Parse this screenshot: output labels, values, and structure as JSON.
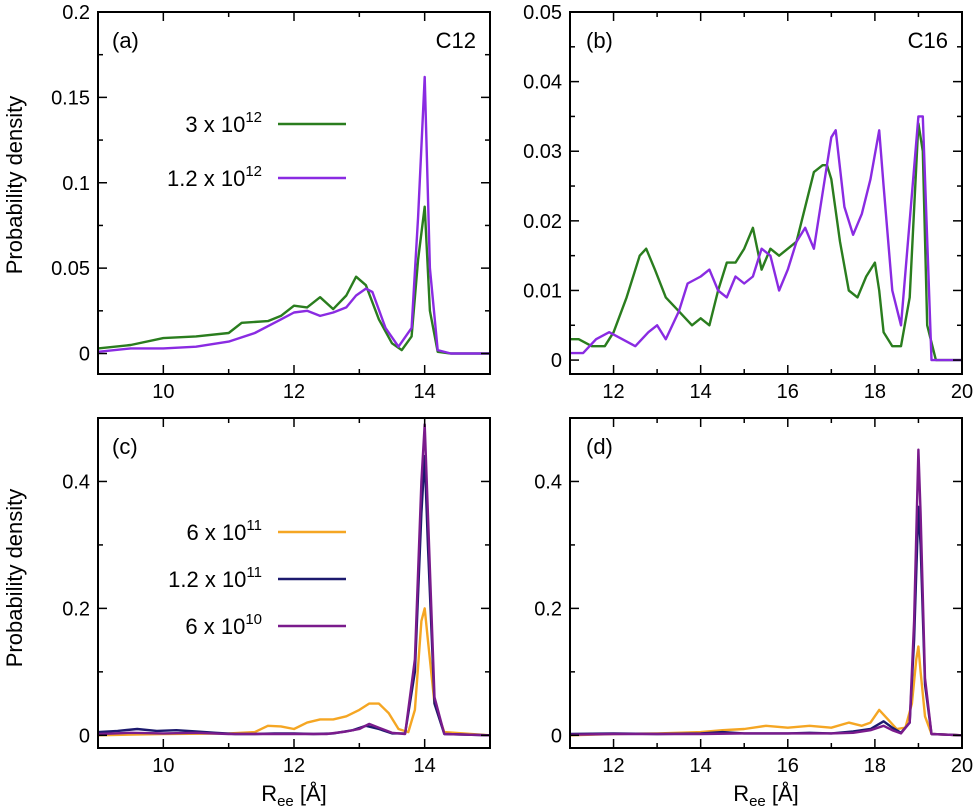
{
  "figure": {
    "ylabel_top": "Probability density",
    "ylabel_bottom": "Probability density",
    "xlabel_main": "R",
    "xlabel_sub": "ee",
    "xlabel_unit": " [Å]"
  },
  "chart_data": [
    {
      "type": "line",
      "panel": "(a)",
      "annotation": "C12",
      "xlim": [
        9,
        15
      ],
      "ylim": [
        -0.012,
        0.2
      ],
      "xticks": [
        10,
        12,
        14
      ],
      "yticks": [
        0,
        0.05,
        0.1,
        0.15,
        0.2
      ],
      "ytick_labels": [
        "0",
        "0.05",
        "0.1",
        "0.15",
        "0.2"
      ],
      "series": [
        {
          "label_base": "3 x 10",
          "label_exp": "12",
          "color": "#2a7d1e",
          "x": [
            9.0,
            9.5,
            10.0,
            10.5,
            11.0,
            11.2,
            11.6,
            11.8,
            12.0,
            12.2,
            12.4,
            12.6,
            12.8,
            12.95,
            13.1,
            13.3,
            13.5,
            13.65,
            13.8,
            13.9,
            14.0,
            14.08,
            14.2,
            14.4,
            15.0
          ],
          "y": [
            0.003,
            0.005,
            0.009,
            0.01,
            0.012,
            0.018,
            0.019,
            0.022,
            0.028,
            0.027,
            0.033,
            0.026,
            0.034,
            0.045,
            0.04,
            0.02,
            0.006,
            0.002,
            0.01,
            0.055,
            0.086,
            0.025,
            0.001,
            0.0,
            0.0
          ]
        },
        {
          "label_base": "1.2 x 10",
          "label_exp": "12",
          "color": "#8a2be2",
          "x": [
            9.0,
            9.5,
            10.0,
            10.5,
            11.0,
            11.4,
            11.6,
            11.8,
            12.0,
            12.2,
            12.4,
            12.6,
            12.8,
            12.95,
            13.1,
            13.2,
            13.4,
            13.6,
            13.8,
            13.9,
            14.0,
            14.08,
            14.2,
            14.4,
            15.0
          ],
          "y": [
            0.001,
            0.003,
            0.003,
            0.004,
            0.007,
            0.012,
            0.016,
            0.02,
            0.024,
            0.025,
            0.022,
            0.024,
            0.027,
            0.034,
            0.038,
            0.036,
            0.015,
            0.004,
            0.015,
            0.08,
            0.162,
            0.05,
            0.002,
            0.0,
            0.0
          ]
        }
      ]
    },
    {
      "type": "line",
      "panel": "(b)",
      "annotation": "C16",
      "xlim": [
        11,
        20
      ],
      "ylim": [
        -0.002,
        0.05
      ],
      "xticks": [
        12,
        14,
        16,
        18,
        20
      ],
      "yticks": [
        0,
        0.01,
        0.02,
        0.03,
        0.04,
        0.05
      ],
      "ytick_labels": [
        "0",
        "0.01",
        "0.02",
        "0.03",
        "0.04",
        "0.05"
      ],
      "series": [
        {
          "label_base": "3 x 10",
          "label_exp": "12",
          "color": "#2a7d1e",
          "x": [
            11.0,
            11.2,
            11.5,
            11.8,
            12.0,
            12.3,
            12.6,
            12.75,
            12.95,
            13.2,
            13.5,
            13.8,
            14.0,
            14.2,
            14.4,
            14.6,
            14.8,
            15.0,
            15.2,
            15.4,
            15.6,
            15.8,
            16.0,
            16.2,
            16.4,
            16.6,
            16.8,
            16.9,
            17.0,
            17.2,
            17.4,
            17.6,
            17.8,
            18.0,
            18.1,
            18.2,
            18.4,
            18.6,
            18.8,
            19.0,
            19.1,
            19.2,
            19.4,
            20.0
          ],
          "y": [
            0.003,
            0.003,
            0.002,
            0.002,
            0.004,
            0.009,
            0.015,
            0.016,
            0.013,
            0.009,
            0.007,
            0.005,
            0.006,
            0.005,
            0.01,
            0.014,
            0.014,
            0.016,
            0.019,
            0.013,
            0.016,
            0.015,
            0.016,
            0.017,
            0.022,
            0.027,
            0.028,
            0.028,
            0.026,
            0.017,
            0.01,
            0.009,
            0.012,
            0.014,
            0.01,
            0.004,
            0.002,
            0.002,
            0.009,
            0.034,
            0.03,
            0.005,
            0.0,
            0.0
          ]
        },
        {
          "label_base": "1.2 x 10",
          "label_exp": "12",
          "color": "#8a2be2",
          "x": [
            11.0,
            11.3,
            11.6,
            11.9,
            12.2,
            12.5,
            12.8,
            13.0,
            13.2,
            13.5,
            13.7,
            14.0,
            14.2,
            14.4,
            14.6,
            14.8,
            15.0,
            15.2,
            15.4,
            15.6,
            15.8,
            16.0,
            16.2,
            16.4,
            16.6,
            16.8,
            17.0,
            17.1,
            17.3,
            17.5,
            17.7,
            17.9,
            18.1,
            18.2,
            18.4,
            18.6,
            18.8,
            19.0,
            19.1,
            19.3,
            20.0
          ],
          "y": [
            0.001,
            0.001,
            0.003,
            0.004,
            0.003,
            0.002,
            0.004,
            0.005,
            0.003,
            0.007,
            0.011,
            0.012,
            0.013,
            0.01,
            0.009,
            0.012,
            0.011,
            0.012,
            0.016,
            0.015,
            0.01,
            0.013,
            0.017,
            0.019,
            0.016,
            0.024,
            0.032,
            0.033,
            0.022,
            0.018,
            0.021,
            0.026,
            0.033,
            0.025,
            0.01,
            0.005,
            0.02,
            0.035,
            0.035,
            0.0,
            0.0
          ]
        }
      ]
    },
    {
      "type": "line",
      "panel": "(c)",
      "annotation": "",
      "xlim": [
        9,
        15
      ],
      "ylim": [
        -0.02,
        0.5
      ],
      "xticks": [
        10,
        12,
        14
      ],
      "yticks": [
        0,
        0.2,
        0.4
      ],
      "ytick_labels": [
        "0",
        "0.2",
        "0.4"
      ],
      "series": [
        {
          "label_base": "6 x 10",
          "label_exp": "11",
          "color": "#f5a623",
          "x": [
            9.0,
            10.0,
            11.0,
            11.4,
            11.6,
            11.8,
            12.0,
            12.2,
            12.4,
            12.6,
            12.8,
            13.0,
            13.15,
            13.3,
            13.45,
            13.6,
            13.75,
            13.85,
            13.95,
            14.0,
            14.05,
            14.15,
            14.3,
            15.0
          ],
          "y": [
            0.0,
            0.002,
            0.003,
            0.005,
            0.015,
            0.014,
            0.01,
            0.02,
            0.025,
            0.025,
            0.03,
            0.04,
            0.05,
            0.05,
            0.035,
            0.01,
            0.005,
            0.04,
            0.18,
            0.2,
            0.15,
            0.05,
            0.005,
            0.0
          ]
        },
        {
          "label_base": "1.2 x 10",
          "label_exp": "11",
          "color": "#1c1a6e",
          "x": [
            9.0,
            9.3,
            9.6,
            9.9,
            10.2,
            10.5,
            10.8,
            11.1,
            11.4,
            11.7,
            12.0,
            12.3,
            12.6,
            12.9,
            13.1,
            13.3,
            13.5,
            13.7,
            13.85,
            13.95,
            14.0,
            14.05,
            14.15,
            14.3,
            15.0
          ],
          "y": [
            0.005,
            0.007,
            0.01,
            0.007,
            0.008,
            0.006,
            0.004,
            0.002,
            0.002,
            0.003,
            0.003,
            0.002,
            0.003,
            0.008,
            0.015,
            0.01,
            0.003,
            0.003,
            0.1,
            0.35,
            0.44,
            0.3,
            0.05,
            0.002,
            0.0
          ]
        },
        {
          "label_base": "6 x 10",
          "label_exp": "10",
          "color": "#7a1b8c",
          "x": [
            9.0,
            9.5,
            10.0,
            10.5,
            11.0,
            11.5,
            12.0,
            12.5,
            12.8,
            13.0,
            13.15,
            13.3,
            13.5,
            13.7,
            13.85,
            13.95,
            14.0,
            14.05,
            14.15,
            14.3,
            15.0
          ],
          "y": [
            0.002,
            0.004,
            0.003,
            0.004,
            0.002,
            0.002,
            0.002,
            0.002,
            0.006,
            0.01,
            0.018,
            0.012,
            0.004,
            0.002,
            0.12,
            0.4,
            0.49,
            0.35,
            0.06,
            0.002,
            0.0
          ]
        }
      ]
    },
    {
      "type": "line",
      "panel": "(d)",
      "annotation": "",
      "xlim": [
        11,
        20
      ],
      "ylim": [
        -0.02,
        0.5
      ],
      "xticks": [
        12,
        14,
        16,
        18,
        20
      ],
      "yticks": [
        0,
        0.2,
        0.4
      ],
      "ytick_labels": [
        "0",
        "0.2",
        "0.4"
      ],
      "series": [
        {
          "label_base": "6 x 10",
          "label_exp": "11",
          "color": "#f5a623",
          "x": [
            11.0,
            12.0,
            13.0,
            14.0,
            14.5,
            15.0,
            15.5,
            16.0,
            16.5,
            17.0,
            17.4,
            17.7,
            17.9,
            18.1,
            18.3,
            18.5,
            18.7,
            18.85,
            18.95,
            19.0,
            19.05,
            19.15,
            19.3,
            20.0
          ],
          "y": [
            0.0,
            0.002,
            0.003,
            0.005,
            0.008,
            0.01,
            0.015,
            0.012,
            0.015,
            0.012,
            0.02,
            0.015,
            0.02,
            0.04,
            0.025,
            0.01,
            0.012,
            0.05,
            0.12,
            0.14,
            0.1,
            0.03,
            0.002,
            0.0
          ]
        },
        {
          "label_base": "1.2 x 10",
          "label_exp": "11",
          "color": "#1c1a6e",
          "x": [
            11.0,
            12.0,
            13.0,
            14.0,
            14.5,
            15.0,
            16.0,
            16.5,
            17.0,
            17.5,
            17.9,
            18.2,
            18.4,
            18.6,
            18.8,
            18.9,
            19.0,
            19.05,
            19.15,
            19.3,
            20.0
          ],
          "y": [
            0.002,
            0.003,
            0.002,
            0.003,
            0.005,
            0.003,
            0.003,
            0.004,
            0.003,
            0.006,
            0.01,
            0.022,
            0.012,
            0.004,
            0.02,
            0.15,
            0.36,
            0.3,
            0.08,
            0.002,
            0.0
          ]
        },
        {
          "label_base": "6 x 10",
          "label_exp": "10",
          "color": "#7a1b8c",
          "x": [
            11.0,
            12.0,
            13.0,
            14.0,
            15.0,
            16.0,
            17.0,
            17.5,
            17.9,
            18.2,
            18.4,
            18.6,
            18.8,
            18.9,
            19.0,
            19.05,
            19.15,
            19.3,
            20.0
          ],
          "y": [
            0.001,
            0.002,
            0.002,
            0.002,
            0.003,
            0.003,
            0.003,
            0.004,
            0.008,
            0.015,
            0.008,
            0.003,
            0.02,
            0.18,
            0.45,
            0.35,
            0.09,
            0.002,
            0.0
          ]
        }
      ]
    }
  ]
}
